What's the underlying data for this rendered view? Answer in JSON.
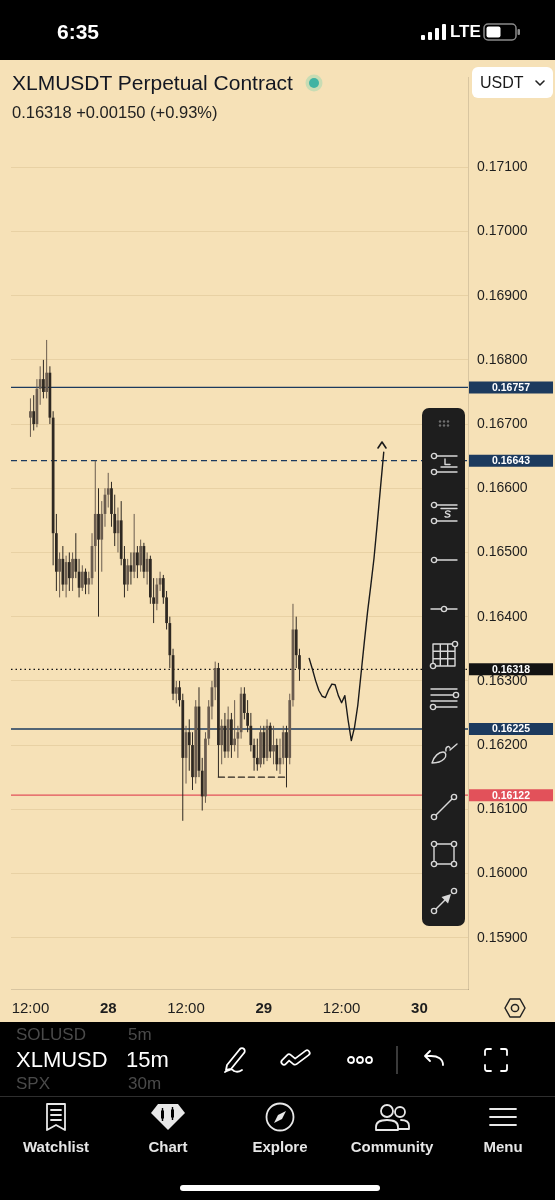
{
  "chart_data": {
    "type": "candlestick",
    "title": "XLMUSDT Perpetual Contract",
    "subtitle": "0.16318 +0.00150 (+0.93%)",
    "categories": [
      null,
      null,
      null,
      null,
      null,
      null,
      "12:00",
      null,
      null,
      null,
      null,
      null,
      null,
      null,
      null,
      null,
      null,
      null,
      null,
      null,
      null,
      null,
      null,
      null,
      null,
      null,
      null,
      null,
      null,
      null,
      "28",
      null,
      null,
      null,
      null,
      null,
      null,
      null,
      null,
      null,
      null,
      null,
      null,
      null,
      null,
      null,
      null,
      null,
      null,
      null,
      null,
      null,
      null,
      null,
      "12:00",
      null,
      null,
      null,
      null,
      null,
      null,
      null,
      null,
      null,
      null,
      null,
      null,
      null,
      null,
      null,
      null,
      null,
      null,
      null,
      null,
      null,
      null,
      null,
      "29",
      null,
      null,
      null,
      null,
      null,
      null,
      null,
      null,
      null,
      null,
      null,
      null,
      null,
      null,
      null,
      null,
      null,
      null,
      null,
      null,
      null,
      null,
      null,
      "12:00",
      null,
      null,
      null,
      null,
      null,
      null,
      null,
      null,
      null,
      null,
      null,
      null,
      null,
      null,
      null,
      null,
      null,
      null,
      null,
      null,
      null,
      null,
      null,
      "30",
      null,
      null,
      null,
      null,
      null,
      null,
      null,
      null,
      null,
      null,
      null,
      null,
      null,
      null,
      null
    ],
    "ylim": [
      0.1582,
      0.1724
    ],
    "yticks": [
      {
        "value": 0.159,
        "label": "0.15900"
      },
      {
        "value": 0.16,
        "label": "0.16000"
      },
      {
        "value": 0.161,
        "label": "0.16100"
      },
      {
        "value": 0.162,
        "label": "0.16200"
      },
      {
        "value": 0.163,
        "label": "0.16300"
      },
      {
        "value": 0.164,
        "label": "0.16400"
      },
      {
        "value": 0.165,
        "label": "0.16500"
      },
      {
        "value": 0.166,
        "label": "0.16600"
      },
      {
        "value": 0.167,
        "label": "0.16700"
      },
      {
        "value": 0.168,
        "label": "0.16800"
      },
      {
        "value": 0.169,
        "label": "0.16900"
      },
      {
        "value": 0.17,
        "label": "0.17000"
      },
      {
        "value": 0.171,
        "label": "0.17100"
      }
    ],
    "grid": "y",
    "ref_lines": [
      {
        "axis": "y",
        "value": 0.16757,
        "label": "0.16757",
        "color": "#1c3a5e"
      },
      {
        "axis": "y",
        "value": 0.16643,
        "label": "0.16643",
        "color": "#1c3a5e",
        "line_style": "dashed"
      },
      {
        "axis": "y",
        "value": 0.16318,
        "label": "0.16318",
        "color": "#131313",
        "line_style": "dotted"
      },
      {
        "axis": "y",
        "value": 0.16225,
        "label": "0.16225",
        "color": "#1c3a5e"
      },
      {
        "axis": "y",
        "value": 0.16122,
        "label": "0.16122",
        "color": "#e2515a"
      }
    ],
    "series": [
      {
        "type": "line",
        "color": "#2a2520",
        "line_style": "dashed",
        "values": [
          null,
          null,
          null,
          null,
          null,
          null,
          null,
          null,
          null,
          null,
          null,
          null,
          null,
          null,
          null,
          null,
          null,
          null,
          null,
          null,
          null,
          null,
          null,
          null,
          null,
          null,
          null,
          null,
          null,
          null,
          null,
          null,
          null,
          null,
          null,
          null,
          null,
          null,
          null,
          null,
          null,
          null,
          null,
          null,
          null,
          null,
          null,
          null,
          null,
          null,
          null,
          null,
          null,
          null,
          null,
          null,
          null,
          null,
          null,
          null,
          null,
          null,
          null,
          null,
          0.1615,
          0.1615,
          0.1615,
          0.1615,
          0.1615,
          0.1615,
          0.1615,
          0.1615,
          0.1615,
          0.1615,
          0.1615,
          0.1615,
          0.1615,
          0.1615,
          0.1615,
          0.1615,
          0.1615,
          0.1615,
          0.1615,
          0.1615,
          0.1615,
          0.1615,
          null,
          null,
          null,
          null,
          null,
          null,
          null,
          null,
          null,
          null,
          null,
          null,
          null,
          null,
          null,
          null,
          null,
          null,
          null,
          null,
          null,
          null,
          null,
          null,
          null,
          null,
          null,
          null,
          null,
          null,
          null,
          null,
          null,
          null,
          null,
          null,
          null,
          null,
          null,
          null,
          null,
          null,
          null,
          null,
          null,
          null,
          null,
          null,
          null,
          null,
          null,
          null,
          null,
          null,
          null,
          null
        ]
      },
      {
        "type": "line",
        "color": "#1a1a1a",
        "values": [
          null,
          null,
          null,
          null,
          null,
          null,
          null,
          null,
          null,
          null,
          null,
          null,
          null,
          null,
          null,
          null,
          null,
          null,
          null,
          null,
          null,
          null,
          null,
          null,
          null,
          null,
          null,
          null,
          null,
          null,
          null,
          null,
          null,
          null,
          null,
          null,
          null,
          null,
          null,
          null,
          null,
          null,
          null,
          null,
          null,
          null,
          null,
          null,
          null,
          null,
          null,
          null,
          null,
          null,
          null,
          null,
          null,
          null,
          null,
          null,
          null,
          null,
          null,
          null,
          null,
          null,
          null,
          null,
          null,
          null,
          null,
          null,
          null,
          null,
          null,
          null,
          null,
          null,
          null,
          null,
          null,
          null,
          null,
          null,
          null,
          null,
          null,
          null,
          null,
          null,
          null,
          null,
          0.16335,
          0.16318,
          0.163,
          0.16285,
          0.16276,
          0.16274,
          0.16286,
          0.16295,
          0.16294,
          0.16277,
          0.16266,
          0.16277,
          0.16239,
          0.16207,
          0.16228,
          0.16262,
          0.16311,
          0.1636,
          0.16407,
          0.16448,
          0.16491,
          0.16545,
          0.16601,
          0.16656,
          null,
          null,
          null,
          null,
          null,
          null,
          null,
          null,
          null,
          null,
          null,
          null,
          null,
          null,
          null,
          null,
          null,
          null,
          null,
          null,
          null,
          null,
          null,
          null,
          null,
          null
        ]
      },
      {
        "colors": [
          null,
          null,
          null,
          null,
          null,
          null,
          "#6a5c4f",
          "#2e2822",
          "#6a5c4f",
          "#6a5c4f",
          "#2e2822",
          "#6a5c4f",
          "#2e2822",
          "#2e2822",
          "#2e2822",
          "#6a5c4f",
          "#2e2822",
          "#6a5c4f",
          "#2e2822",
          "#6a5c4f",
          "#2e2822",
          "#2e2822",
          "#6a5c4f",
          "#2e2822",
          "#6a5c4f",
          "#6a5c4f",
          "#6a5c4f",
          "#2e2822",
          "#6a5c4f",
          "#6a5c4f",
          "#6a5c4f",
          "#2e2822",
          "#2e2822",
          "#6a5c4f",
          "#2e2822",
          "#2e2822",
          "#6a5c4f",
          "#2e2822",
          "#6a5c4f",
          "#2e2822",
          "#6a5c4f",
          "#2e2822",
          "#6a5c4f",
          "#2e2822",
          "#2e2822",
          "#6a5c4f",
          "#6a5c4f",
          "#2e2822",
          "#2e2822",
          "#2e2822",
          "#2e2822",
          "#6a5c4f",
          "#2e2822",
          "#2e2822",
          "#6a5c4f",
          "#2e2822",
          "#2e2822",
          "#6a5c4f",
          "#2e2822",
          "#2e2822",
          "#6a5c4f",
          "#6a5c4f",
          "#6a5c4f",
          "#6a5c4f",
          "#2e2822",
          "#6a5c4f",
          "#2e2822",
          "#6a5c4f",
          "#2e2822",
          "#6a5c4f",
          "#6a5c4f",
          "#6a5c4f",
          "#2e2822",
          "#2e2822",
          "#2e2822",
          "#2e2822",
          "#2e2822",
          "#6a5c4f",
          "#2e2822",
          "#6a5c4f",
          "#2e2822",
          "#6a5c4f",
          "#2e2822",
          "#6a5c4f",
          "#6a5c4f",
          "#2e2822",
          "#6a5c4f",
          "#6a5c4f",
          "#2e2822",
          "#2e2822",
          null,
          null,
          null,
          null,
          null,
          null,
          null,
          null,
          null,
          null,
          null,
          null,
          null,
          null,
          null,
          null,
          null,
          null,
          null,
          null,
          null,
          null,
          null,
          null,
          null,
          null,
          null,
          null,
          null,
          null,
          null,
          null,
          null,
          null,
          null,
          null,
          null,
          null,
          null,
          null,
          null,
          null,
          null,
          null,
          null,
          null,
          null,
          null,
          null,
          null,
          null,
          null
        ],
        "ohlc": [
          null,
          null,
          null,
          null,
          null,
          null,
          [
            0.1671,
            0.1674,
            0.1668,
            0.1672
          ],
          [
            0.1672,
            0.16745,
            0.1669,
            0.167
          ],
          [
            0.167,
            0.1677,
            0.16695,
            0.16755
          ],
          [
            0.16755,
            0.1679,
            0.1673,
            0.1677
          ],
          [
            0.1677,
            0.168,
            0.1674,
            0.1675
          ],
          [
            0.1675,
            0.16831,
            0.1674,
            0.1678
          ],
          [
            0.1678,
            0.1679,
            0.167,
            0.1671
          ],
          [
            0.1671,
            0.1672,
            0.1648,
            0.1653
          ],
          [
            0.1653,
            0.1656,
            0.1644,
            0.1647
          ],
          [
            0.1647,
            0.165,
            0.1643,
            0.1649
          ],
          [
            0.1649,
            0.1651,
            0.1644,
            0.1645
          ],
          [
            0.1645,
            0.16495,
            0.1643,
            0.16485
          ],
          [
            0.16485,
            0.165,
            0.1644,
            0.1646
          ],
          [
            0.1646,
            0.165,
            0.1644,
            0.1649
          ],
          [
            0.1649,
            0.1653,
            0.1646,
            0.1647
          ],
          [
            0.1647,
            0.1649,
            0.1643,
            0.16445
          ],
          [
            0.16445,
            0.1648,
            0.1644,
            0.1647
          ],
          [
            0.1647,
            0.16475,
            0.16435,
            0.1645
          ],
          [
            0.1645,
            0.1647,
            0.16435,
            0.1646
          ],
          [
            0.1646,
            0.1653,
            0.1645,
            0.1651
          ],
          [
            0.1651,
            0.16643,
            0.1647,
            0.1656
          ],
          [
            0.1656,
            0.166,
            0.164,
            0.1652
          ],
          [
            0.1652,
            0.1658,
            0.1647,
            0.1656
          ],
          [
            0.1656,
            0.166,
            0.1654,
            0.1659
          ],
          [
            0.1659,
            0.16624,
            0.1657,
            0.166
          ],
          [
            0.166,
            0.1661,
            0.1654,
            0.1656
          ],
          [
            0.1656,
            0.1659,
            0.1651,
            0.1653
          ],
          [
            0.1653,
            0.1657,
            0.165,
            0.1655
          ],
          [
            0.1655,
            0.1658,
            0.1648,
            0.1649
          ],
          [
            0.1649,
            0.1651,
            0.1643,
            0.1645
          ],
          [
            0.1645,
            0.1649,
            0.1644,
            0.1648
          ],
          [
            0.1648,
            0.165,
            0.1645,
            0.1647
          ],
          [
            0.1647,
            0.1656,
            0.1646,
            0.165
          ],
          [
            0.165,
            0.1651,
            0.1646,
            0.1648
          ],
          [
            0.1648,
            0.1652,
            0.1647,
            0.1651
          ],
          [
            0.1651,
            0.16515,
            0.1646,
            0.1647
          ],
          [
            0.1647,
            0.165,
            0.1645,
            0.1649
          ],
          [
            0.1649,
            0.16495,
            0.1642,
            0.1643
          ],
          [
            0.1643,
            0.1646,
            0.1639,
            0.1642
          ],
          [
            0.1642,
            0.1646,
            0.1641,
            0.1645
          ],
          [
            0.1645,
            0.1647,
            0.1644,
            0.1646
          ],
          [
            0.1646,
            0.16465,
            0.1642,
            0.1643
          ],
          [
            0.1643,
            0.1644,
            0.1638,
            0.1639
          ],
          [
            0.1639,
            0.164,
            0.1632,
            0.1634
          ],
          [
            0.1634,
            0.1635,
            0.1627,
            0.1628
          ],
          [
            0.1628,
            0.163,
            0.16265,
            0.1629
          ],
          [
            0.1629,
            0.163,
            0.1626,
            0.1627
          ],
          [
            0.1627,
            0.1628,
            0.16082,
            0.1618
          ],
          [
            0.1618,
            0.1623,
            0.1614,
            0.1622
          ],
          [
            0.1622,
            0.1624,
            0.1616,
            0.162
          ],
          [
            0.162,
            0.1622,
            0.1613,
            0.1615
          ],
          [
            0.1615,
            0.1627,
            0.1614,
            0.1626
          ],
          [
            0.1626,
            0.1629,
            0.1615,
            0.1616
          ],
          [
            0.1616,
            0.1618,
            0.16098,
            0.1612
          ],
          [
            0.1612,
            0.1622,
            0.1611,
            0.1621
          ],
          [
            0.1621,
            0.1627,
            0.162,
            0.1626
          ],
          [
            0.1626,
            0.163,
            0.1624,
            0.1629
          ],
          [
            0.1629,
            0.1633,
            0.1627,
            0.1632
          ],
          [
            0.1632,
            0.16328,
            0.1615,
            0.162
          ],
          [
            0.162,
            0.1624,
            0.1617,
            0.1623
          ],
          [
            0.1623,
            0.1625,
            0.1618,
            0.1619
          ],
          [
            0.1619,
            0.1626,
            0.1618,
            0.1624
          ],
          [
            0.1624,
            0.1625,
            0.1618,
            0.162
          ],
          [
            0.162,
            0.1627,
            0.1619,
            0.1621
          ],
          [
            0.1621,
            0.1623,
            0.1618,
            0.1622
          ],
          [
            0.1622,
            0.1629,
            0.1621,
            0.1628
          ],
          [
            0.1628,
            0.1629,
            0.1624,
            0.1625
          ],
          [
            0.1625,
            0.1627,
            0.1622,
            0.1623
          ],
          [
            0.1623,
            0.1625,
            0.1619,
            0.162
          ],
          [
            0.162,
            0.1621,
            0.1616,
            0.1618
          ],
          [
            0.1618,
            0.1621,
            0.1616,
            0.1617
          ],
          [
            0.1617,
            0.1623,
            0.16165,
            0.1622
          ],
          [
            0.1622,
            0.1623,
            0.1617,
            0.1618
          ],
          [
            0.1618,
            0.1624,
            0.16175,
            0.1623
          ],
          [
            0.1623,
            0.16235,
            0.1618,
            0.1619
          ],
          [
            0.1619,
            0.1623,
            0.1617,
            0.162
          ],
          [
            0.162,
            0.1621,
            0.1616,
            0.1617
          ],
          [
            0.1617,
            0.1621,
            0.16155,
            0.1618
          ],
          [
            0.1618,
            0.1623,
            0.1617,
            0.1622
          ],
          [
            0.1622,
            0.1623,
            0.16134,
            0.1618
          ],
          [
            0.1618,
            0.1628,
            0.1617,
            0.1627
          ],
          [
            0.1627,
            0.1642,
            0.1626,
            0.1638
          ],
          [
            0.1638,
            0.164,
            0.1632,
            0.1634
          ],
          [
            0.1634,
            0.1635,
            0.163,
            0.16318
          ],
          null,
          null,
          null,
          null,
          null,
          null,
          null,
          null,
          null,
          null,
          null,
          null,
          null,
          null,
          null,
          null,
          null,
          null,
          null,
          null,
          null,
          null,
          null,
          null,
          null,
          null,
          null,
          null,
          null,
          null,
          null,
          null,
          null,
          null,
          null,
          null,
          null,
          null,
          null,
          null,
          null,
          null,
          null,
          null,
          null,
          null,
          null,
          null,
          null,
          null,
          null,
          null
        ]
      }
    ],
    "annotations": [
      "6:35",
      "LTE",
      "USDT",
      "XLMUSD",
      "15m",
      "SOLUSD",
      "5m",
      "SPX",
      "30m",
      "Watchlist",
      "Chart",
      "Explore",
      "Community",
      "Menu"
    ]
  }
}
